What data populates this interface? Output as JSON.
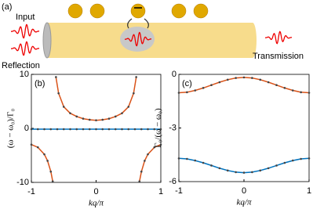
{
  "schematic": {
    "label": "(a)",
    "input": "Input",
    "reflection": "Reflection",
    "transmission": "Transmission"
  },
  "chart_data": [
    {
      "type": "line",
      "panel_label": "(b)",
      "x_label": "kq/π",
      "y_label": "(ω − ω₀)/Γ₀",
      "xlim": [
        -1,
        1
      ],
      "xticks": [
        -1,
        0,
        1
      ],
      "ylim": [
        -10,
        10
      ],
      "yticks": [
        -10,
        0,
        10
      ],
      "series": [
        {
          "color": "#d95319",
          "x": [
            -0.62,
            -0.58,
            -0.5,
            -0.4,
            -0.3,
            -0.2,
            -0.1,
            0,
            0.1,
            0.2,
            0.3,
            0.4,
            0.5,
            0.58,
            0.62
          ],
          "values": [
            9.5,
            6.5,
            4,
            2.8,
            2.2,
            1.8,
            1.6,
            1.5,
            1.6,
            1.8,
            2.2,
            2.8,
            4,
            6.5,
            9.5
          ]
        },
        {
          "color": "#d95319",
          "x": [
            -1,
            -0.9,
            -0.8,
            -0.75,
            -0.7,
            -0.67
          ],
          "values": [
            -3,
            -3.5,
            -4.8,
            -6,
            -8,
            -9.8
          ]
        },
        {
          "color": "#d95319",
          "x": [
            0.67,
            0.7,
            0.75,
            0.8,
            0.9,
            1
          ],
          "values": [
            -9.8,
            -8,
            -6,
            -4.8,
            -3.5,
            -3
          ]
        },
        {
          "color": "#0072bd",
          "x": [
            -1,
            -0.9,
            -0.8,
            -0.7,
            -0.6,
            -0.5,
            -0.4,
            -0.3,
            -0.2,
            -0.1,
            0,
            0.1,
            0.2,
            0.3,
            0.4,
            0.5,
            0.6,
            0.7,
            0.8,
            0.9,
            1
          ],
          "values": [
            -0.15,
            -0.15,
            -0.15,
            -0.15,
            -0.15,
            -0.15,
            -0.15,
            -0.15,
            -0.15,
            -0.15,
            -0.15,
            -0.15,
            -0.15,
            -0.15,
            -0.15,
            -0.15,
            -0.15,
            -0.15,
            -0.15,
            -0.15,
            -0.15
          ]
        }
      ]
    },
    {
      "type": "line",
      "panel_label": "(c)",
      "x_label": "kq/π",
      "y_label": "Γ₀/(ω − ω₀)",
      "xlim": [
        -1,
        1
      ],
      "xticks": [
        -1,
        0,
        1
      ],
      "ylim": [
        -6,
        0
      ],
      "yticks": [
        0,
        -3,
        -6
      ],
      "series": [
        {
          "color": "#d95319",
          "x": [
            -1,
            -0.875,
            -0.75,
            -0.625,
            -0.5,
            -0.375,
            -0.25,
            -0.125,
            0,
            0.125,
            0.25,
            0.375,
            0.5,
            0.625,
            0.75,
            0.875,
            1
          ],
          "values": [
            -1.03,
            -1.0,
            -0.9,
            -0.76,
            -0.6,
            -0.44,
            -0.3,
            -0.2,
            -0.17,
            -0.2,
            -0.3,
            -0.44,
            -0.6,
            -0.76,
            -0.9,
            -1.0,
            -1.03
          ]
        },
        {
          "color": "#0072bd",
          "x": [
            -1,
            -0.875,
            -0.75,
            -0.625,
            -0.5,
            -0.375,
            -0.25,
            -0.125,
            0,
            0.125,
            0.25,
            0.375,
            0.5,
            0.625,
            0.75,
            0.875,
            1
          ],
          "values": [
            -4.7,
            -4.73,
            -4.82,
            -4.95,
            -5.1,
            -5.25,
            -5.38,
            -5.47,
            -5.5,
            -5.47,
            -5.38,
            -5.25,
            -5.1,
            -4.95,
            -4.82,
            -4.73,
            -4.7
          ]
        }
      ]
    }
  ]
}
